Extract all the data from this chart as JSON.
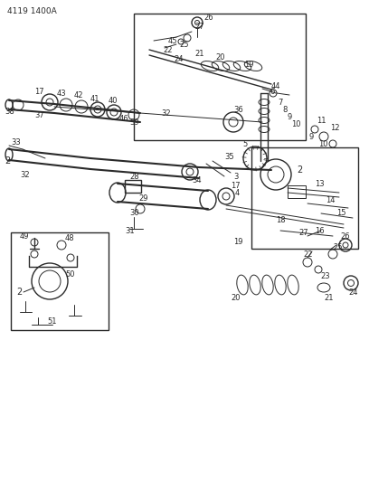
{
  "title": "4119 1400A",
  "bg_color": "#ffffff",
  "line_color": "#2a2a2a",
  "figsize": [
    4.08,
    5.33
  ],
  "dpi": 100
}
